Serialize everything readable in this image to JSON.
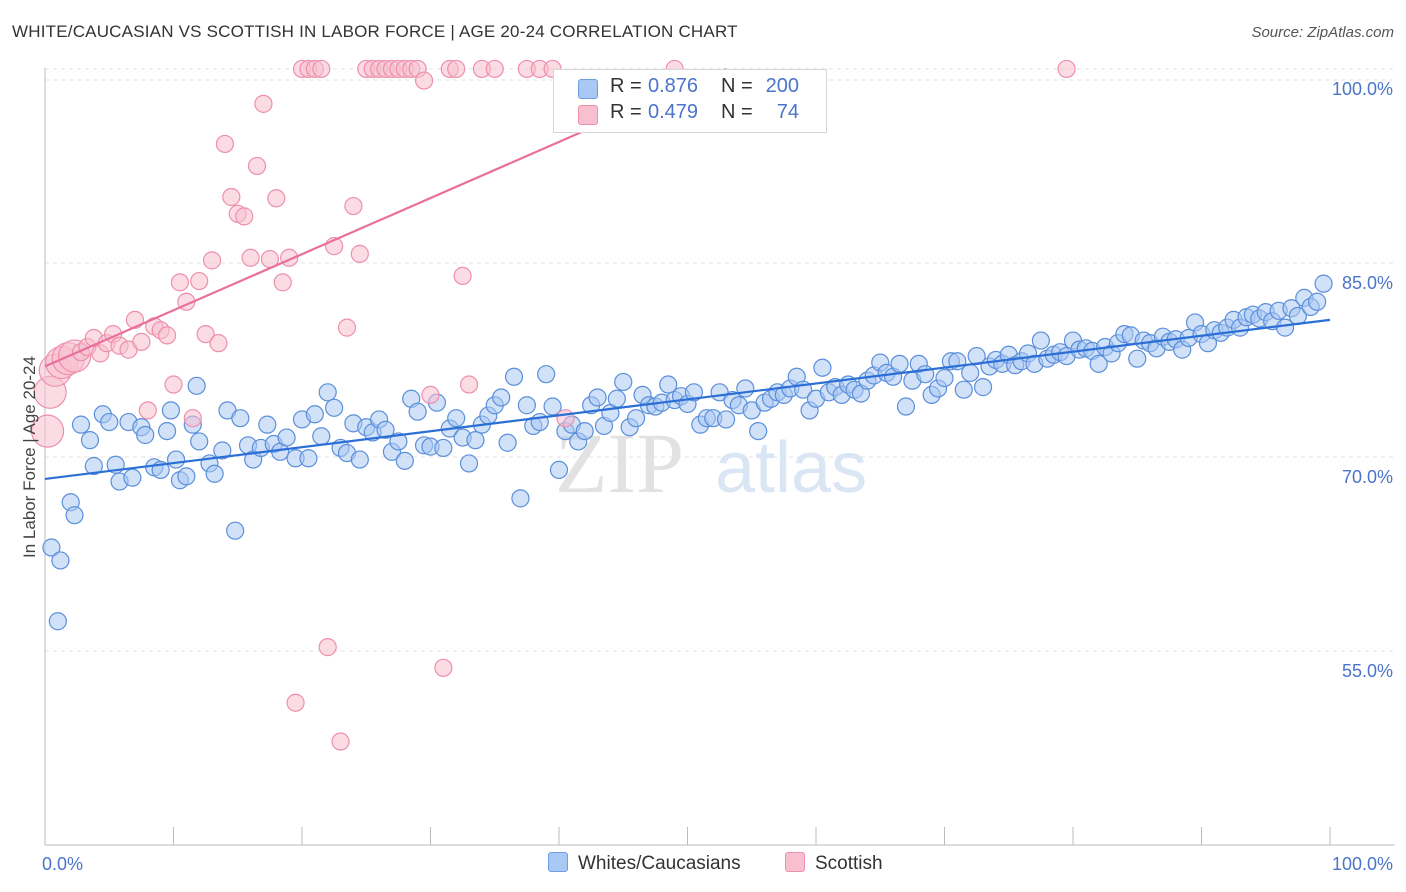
{
  "title": "WHITE/CAUCASIAN VS SCOTTISH IN LABOR FORCE | AGE 20-24 CORRELATION CHART",
  "source": "Source: ZipAtlas.com",
  "watermark": {
    "zip": "ZIP",
    "atlas": "atlas"
  },
  "legend": {
    "rows": [
      {
        "r_label": "R =",
        "r_value": "0.876",
        "n_label": "N =",
        "n_value": "200",
        "color": "#a9c8f3",
        "border": "#6f9fe0"
      },
      {
        "r_label": "R =",
        "r_value": "0.479",
        "n_label": "N =",
        "n_value": "74",
        "color": "#f8bfd0",
        "border": "#ee8fac"
      }
    ]
  },
  "bottom_legend": [
    {
      "label": "Whites/Caucasians",
      "color": "#a9c8f3",
      "border": "#6f9fe0"
    },
    {
      "label": "Scottish",
      "color": "#f8bfd0",
      "border": "#ee8fac"
    }
  ],
  "chart_data": {
    "type": "scatter",
    "title": "WHITE/CAUCASIAN VS SCOTTISH IN LABOR FORCE | AGE 20-24 CORRELATION CHART",
    "xlabel": "",
    "ylabel": "In Labor Force | Age 20-24",
    "xlim": [
      0,
      100
    ],
    "ylim": [
      40,
      101
    ],
    "x_tick_labels": [
      {
        "value": 0,
        "label": "0.0%"
      },
      {
        "value": 100,
        "label": "100.0%"
      }
    ],
    "y_tick_labels": [
      {
        "value": 55,
        "label": "55.0%"
      },
      {
        "value": 70,
        "label": "70.0%"
      },
      {
        "value": 85,
        "label": "85.0%"
      },
      {
        "value": 100,
        "label": "100.0%"
      }
    ],
    "grid": true,
    "legend_position": "top-center",
    "colors": {
      "blue": "#5b8fdb",
      "blue_fill": "#a9c8f3",
      "blue_line": "#2b6fd6",
      "pink": "#ee8fac",
      "pink_fill": "#f8bfd0",
      "pink_line": "#e8709a"
    },
    "series": [
      {
        "name": "Whites/Caucasians",
        "r": 0.876,
        "n": 200,
        "trend": {
          "x": [
            0,
            100
          ],
          "y": [
            68.3,
            80.6
          ]
        },
        "points": [
          [
            0.5,
            63.0
          ],
          [
            1.2,
            62.0
          ],
          [
            1.0,
            57.3
          ],
          [
            2.0,
            66.5
          ],
          [
            2.3,
            65.5
          ],
          [
            2.8,
            72.5
          ],
          [
            3.5,
            71.3
          ],
          [
            3.8,
            69.3
          ],
          [
            4.5,
            73.3
          ],
          [
            5.0,
            72.7
          ],
          [
            5.5,
            69.4
          ],
          [
            5.8,
            68.1
          ],
          [
            6.5,
            72.7
          ],
          [
            6.8,
            68.4
          ],
          [
            7.5,
            72.3
          ],
          [
            7.8,
            71.7
          ],
          [
            8.5,
            69.2
          ],
          [
            9.0,
            69.0
          ],
          [
            9.5,
            72.0
          ],
          [
            9.8,
            73.6
          ],
          [
            10.2,
            69.8
          ],
          [
            10.5,
            68.2
          ],
          [
            11.0,
            68.5
          ],
          [
            11.5,
            72.5
          ],
          [
            11.8,
            75.5
          ],
          [
            12.0,
            71.2
          ],
          [
            12.8,
            69.5
          ],
          [
            13.2,
            68.7
          ],
          [
            13.8,
            70.5
          ],
          [
            14.2,
            73.6
          ],
          [
            14.8,
            64.3
          ],
          [
            15.2,
            73.0
          ],
          [
            15.8,
            70.9
          ],
          [
            16.2,
            69.8
          ],
          [
            16.8,
            70.7
          ],
          [
            17.3,
            72.5
          ],
          [
            17.8,
            71.0
          ],
          [
            18.3,
            70.4
          ],
          [
            18.8,
            71.5
          ],
          [
            19.5,
            69.9
          ],
          [
            20.0,
            72.9
          ],
          [
            20.5,
            69.9
          ],
          [
            21.0,
            73.3
          ],
          [
            21.5,
            71.6
          ],
          [
            22.0,
            75.0
          ],
          [
            22.5,
            73.8
          ],
          [
            23.0,
            70.7
          ],
          [
            23.5,
            70.3
          ],
          [
            24.0,
            72.6
          ],
          [
            24.5,
            69.8
          ],
          [
            25.0,
            72.3
          ],
          [
            25.5,
            71.9
          ],
          [
            26.0,
            72.9
          ],
          [
            26.5,
            72.1
          ],
          [
            27.0,
            70.4
          ],
          [
            27.5,
            71.2
          ],
          [
            28.0,
            69.7
          ],
          [
            28.5,
            74.5
          ],
          [
            29.0,
            73.5
          ],
          [
            29.5,
            70.9
          ],
          [
            30.0,
            70.8
          ],
          [
            30.5,
            74.2
          ],
          [
            31.0,
            70.7
          ],
          [
            31.5,
            72.2
          ],
          [
            32.0,
            73.0
          ],
          [
            32.5,
            71.5
          ],
          [
            33.0,
            69.5
          ],
          [
            33.5,
            71.3
          ],
          [
            34.0,
            72.5
          ],
          [
            34.5,
            73.2
          ],
          [
            35.0,
            74.0
          ],
          [
            35.5,
            74.6
          ],
          [
            36.0,
            71.1
          ],
          [
            36.5,
            76.2
          ],
          [
            37.0,
            66.8
          ],
          [
            37.5,
            74.0
          ],
          [
            38.0,
            72.4
          ],
          [
            38.5,
            72.7
          ],
          [
            39.0,
            76.4
          ],
          [
            39.5,
            73.9
          ],
          [
            40.0,
            69.0
          ],
          [
            40.5,
            72.0
          ],
          [
            41.0,
            72.5
          ],
          [
            41.5,
            71.2
          ],
          [
            42.0,
            72.0
          ],
          [
            42.5,
            74.0
          ],
          [
            43.0,
            74.6
          ],
          [
            43.5,
            72.4
          ],
          [
            44.0,
            73.4
          ],
          [
            44.5,
            74.5
          ],
          [
            45.0,
            75.8
          ],
          [
            45.5,
            72.3
          ],
          [
            46.0,
            73.0
          ],
          [
            46.5,
            74.8
          ],
          [
            47.0,
            74.0
          ],
          [
            47.5,
            73.9
          ],
          [
            48.0,
            74.2
          ],
          [
            48.5,
            75.6
          ],
          [
            49.0,
            74.4
          ],
          [
            49.5,
            74.7
          ],
          [
            50.0,
            74.1
          ],
          [
            50.5,
            75.0
          ],
          [
            51.0,
            72.5
          ],
          [
            51.5,
            73.0
          ],
          [
            52.0,
            73.0
          ],
          [
            52.5,
            75.0
          ],
          [
            53.0,
            72.9
          ],
          [
            53.5,
            74.4
          ],
          [
            54.0,
            74.0
          ],
          [
            54.5,
            75.3
          ],
          [
            55.0,
            73.6
          ],
          [
            55.5,
            72.0
          ],
          [
            56.0,
            74.2
          ],
          [
            56.5,
            74.5
          ],
          [
            57.0,
            75.0
          ],
          [
            57.5,
            74.8
          ],
          [
            58.0,
            75.3
          ],
          [
            58.5,
            76.2
          ],
          [
            59.0,
            75.2
          ],
          [
            59.5,
            73.6
          ],
          [
            60.0,
            74.5
          ],
          [
            60.5,
            76.9
          ],
          [
            61.0,
            75.0
          ],
          [
            61.5,
            75.4
          ],
          [
            62.0,
            74.8
          ],
          [
            62.5,
            75.6
          ],
          [
            63.0,
            75.2
          ],
          [
            63.5,
            74.9
          ],
          [
            64.0,
            75.9
          ],
          [
            64.5,
            76.3
          ],
          [
            65.0,
            77.3
          ],
          [
            65.5,
            76.5
          ],
          [
            66.0,
            76.2
          ],
          [
            66.5,
            77.2
          ],
          [
            67.0,
            73.9
          ],
          [
            67.5,
            75.9
          ],
          [
            68.0,
            77.2
          ],
          [
            68.5,
            76.4
          ],
          [
            69.0,
            74.8
          ],
          [
            69.5,
            75.3
          ],
          [
            70.0,
            76.1
          ],
          [
            70.5,
            77.4
          ],
          [
            71.0,
            77.4
          ],
          [
            71.5,
            75.2
          ],
          [
            72.0,
            76.5
          ],
          [
            72.5,
            77.8
          ],
          [
            73.0,
            75.4
          ],
          [
            73.5,
            77.0
          ],
          [
            74.0,
            77.5
          ],
          [
            74.5,
            77.2
          ],
          [
            75.0,
            77.9
          ],
          [
            75.5,
            77.1
          ],
          [
            76.0,
            77.4
          ],
          [
            76.5,
            78.0
          ],
          [
            77.0,
            77.2
          ],
          [
            77.5,
            79.0
          ],
          [
            78.0,
            77.6
          ],
          [
            78.5,
            77.9
          ],
          [
            79.0,
            78.1
          ],
          [
            79.5,
            77.8
          ],
          [
            80.0,
            79.0
          ],
          [
            80.5,
            78.3
          ],
          [
            81.0,
            78.4
          ],
          [
            81.5,
            78.2
          ],
          [
            82.0,
            77.2
          ],
          [
            82.5,
            78.5
          ],
          [
            83.0,
            78.0
          ],
          [
            83.5,
            78.8
          ],
          [
            84.0,
            79.5
          ],
          [
            84.5,
            79.4
          ],
          [
            85.0,
            77.6
          ],
          [
            85.5,
            79.0
          ],
          [
            86.0,
            78.8
          ],
          [
            86.5,
            78.4
          ],
          [
            87.0,
            79.3
          ],
          [
            87.5,
            78.9
          ],
          [
            88.0,
            79.1
          ],
          [
            88.5,
            78.3
          ],
          [
            89.0,
            79.2
          ],
          [
            89.5,
            80.4
          ],
          [
            90.0,
            79.5
          ],
          [
            90.5,
            78.8
          ],
          [
            91.0,
            79.8
          ],
          [
            91.5,
            79.6
          ],
          [
            92.0,
            80.0
          ],
          [
            92.5,
            80.6
          ],
          [
            93.0,
            80.0
          ],
          [
            93.5,
            80.8
          ],
          [
            94.0,
            81.0
          ],
          [
            94.5,
            80.7
          ],
          [
            95.0,
            81.2
          ],
          [
            95.5,
            80.5
          ],
          [
            96.0,
            81.3
          ],
          [
            96.5,
            80.0
          ],
          [
            97.0,
            81.5
          ],
          [
            97.5,
            80.9
          ],
          [
            98.0,
            82.3
          ],
          [
            98.5,
            81.6
          ],
          [
            99.0,
            82.0
          ],
          [
            99.5,
            83.4
          ]
        ]
      },
      {
        "name": "Scottish",
        "r": 0.479,
        "n": 74,
        "trend": {
          "x": [
            0,
            53
          ],
          "y": [
            77.0,
            100.0
          ]
        },
        "points": [
          [
            0.2,
            72.0
          ],
          [
            0.4,
            75.0
          ],
          [
            0.8,
            76.7
          ],
          [
            1.3,
            77.3
          ],
          [
            1.8,
            77.6
          ],
          [
            2.3,
            77.8
          ],
          [
            2.8,
            78.1
          ],
          [
            3.3,
            78.5
          ],
          [
            3.8,
            79.2
          ],
          [
            4.3,
            78.0
          ],
          [
            4.8,
            78.8
          ],
          [
            5.3,
            79.5
          ],
          [
            5.8,
            78.6
          ],
          [
            6.5,
            78.3
          ],
          [
            7.0,
            80.6
          ],
          [
            7.5,
            78.9
          ],
          [
            8.0,
            73.6
          ],
          [
            8.5,
            80.1
          ],
          [
            9.0,
            79.8
          ],
          [
            9.5,
            79.4
          ],
          [
            10.0,
            75.6
          ],
          [
            10.5,
            83.5
          ],
          [
            11.0,
            82.0
          ],
          [
            11.5,
            73.0
          ],
          [
            12.0,
            83.6
          ],
          [
            12.5,
            79.5
          ],
          [
            13.0,
            85.2
          ],
          [
            13.5,
            78.8
          ],
          [
            14.0,
            94.2
          ],
          [
            14.5,
            90.1
          ],
          [
            15.0,
            88.8
          ],
          [
            15.5,
            88.6
          ],
          [
            16.0,
            85.4
          ],
          [
            16.5,
            92.5
          ],
          [
            17.0,
            97.3
          ],
          [
            17.5,
            85.3
          ],
          [
            18.0,
            90.0
          ],
          [
            18.5,
            83.5
          ],
          [
            19.0,
            85.4
          ],
          [
            19.5,
            51.0
          ],
          [
            20.0,
            100.0
          ],
          [
            20.5,
            100.0
          ],
          [
            21.0,
            100.0
          ],
          [
            21.5,
            100.0
          ],
          [
            22.0,
            55.3
          ],
          [
            22.5,
            86.3
          ],
          [
            23.0,
            48.0
          ],
          [
            23.5,
            80.0
          ],
          [
            24.0,
            89.4
          ],
          [
            24.5,
            85.7
          ],
          [
            25.0,
            100.0
          ],
          [
            25.5,
            100.0
          ],
          [
            26.0,
            100.0
          ],
          [
            26.5,
            100.0
          ],
          [
            27.0,
            100.0
          ],
          [
            27.5,
            100.0
          ],
          [
            28.0,
            100.0
          ],
          [
            28.5,
            100.0
          ],
          [
            29.0,
            100.0
          ],
          [
            29.5,
            99.1
          ],
          [
            30.0,
            74.8
          ],
          [
            31.0,
            53.7
          ],
          [
            31.5,
            100.0
          ],
          [
            32.0,
            100.0
          ],
          [
            32.5,
            84.0
          ],
          [
            33.0,
            75.6
          ],
          [
            34.0,
            100.0
          ],
          [
            35.0,
            100.0
          ],
          [
            37.5,
            100.0
          ],
          [
            38.5,
            100.0
          ],
          [
            39.5,
            100.0
          ],
          [
            40.5,
            73.0
          ],
          [
            49.0,
            100.0
          ],
          [
            79.5,
            100.0
          ]
        ]
      }
    ]
  }
}
